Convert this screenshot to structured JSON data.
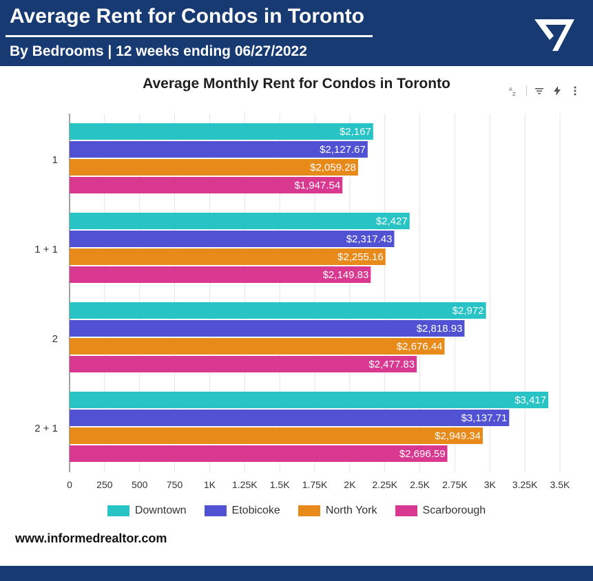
{
  "header": {
    "title": "Average Rent for Condos in Toronto",
    "subtitle": "By Bedrooms | 12 weeks ending 06/27/2022"
  },
  "toolbar": {
    "sort_icon": "sort-az-icon",
    "filter_icon": "filter-icon",
    "flash_icon": "lightning-icon",
    "more_icon": "more-vert-icon"
  },
  "footer": {
    "website": "www.informedrealtor.com"
  },
  "colors": {
    "header_bg": "#173a73",
    "Downtown": "#27c3c5",
    "Etobicoke": "#5151d3",
    "North York": "#e88a1a",
    "Scarborough": "#d8388f"
  },
  "chart_data": {
    "type": "bar",
    "orientation": "horizontal",
    "title": "Average Monthly Rent for Condos in Toronto",
    "categories": [
      "1",
      "1 + 1",
      "2",
      "2 + 1"
    ],
    "series": [
      {
        "name": "Downtown",
        "values": [
          2167,
          2427,
          2972,
          3417
        ],
        "labels": [
          "$2,167",
          "$2,427",
          "$2,972",
          "$3,417"
        ]
      },
      {
        "name": "Etobicoke",
        "values": [
          2127.67,
          2317.43,
          2818.93,
          3137.71
        ],
        "labels": [
          "$2,127.67",
          "$2,317.43",
          "$2,818.93",
          "$3,137.71"
        ]
      },
      {
        "name": "North York",
        "values": [
          2059.28,
          2255.16,
          2676.44,
          2949.34
        ],
        "labels": [
          "$2,059.28",
          "$2,255.16",
          "$2,676.44",
          "$2,949.34"
        ]
      },
      {
        "name": "Scarborough",
        "values": [
          1947.54,
          2149.83,
          2477.83,
          2696.59
        ],
        "labels": [
          "$1,947.54",
          "$2,149.83",
          "$2,477.83",
          "$2,696.59"
        ]
      }
    ],
    "xlim": [
      0,
      3500
    ],
    "xticks": [
      "0",
      "250",
      "500",
      "750",
      "1K",
      "1.25K",
      "1.5K",
      "1.75K",
      "2K",
      "2.25K",
      "2.5K",
      "2.75K",
      "3K",
      "3.25K",
      "3.5K"
    ],
    "grid": true,
    "legend": "bottom"
  }
}
